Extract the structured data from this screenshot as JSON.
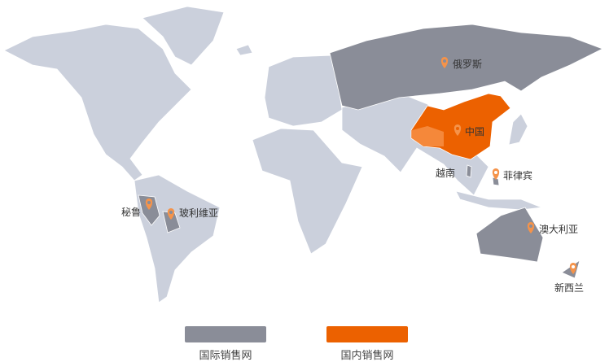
{
  "colors": {
    "land": "#cbd0dc",
    "international": "#8a8d98",
    "domestic": "#ec6100",
    "domestic_light": "#f5883a",
    "pin": "#f5934a"
  },
  "markers": [
    {
      "name": "俄罗斯",
      "type": "international"
    },
    {
      "name": "中国",
      "type": "domestic"
    },
    {
      "name": "越南",
      "type": "international"
    },
    {
      "name": "菲律宾",
      "type": "international"
    },
    {
      "name": "澳大利亚",
      "type": "international"
    },
    {
      "name": "新西兰",
      "type": "international"
    },
    {
      "name": "秘鲁",
      "type": "international"
    },
    {
      "name": "玻利维亚",
      "type": "international"
    }
  ],
  "legend": {
    "international": "国际销售网",
    "domestic": "国内销售网"
  }
}
